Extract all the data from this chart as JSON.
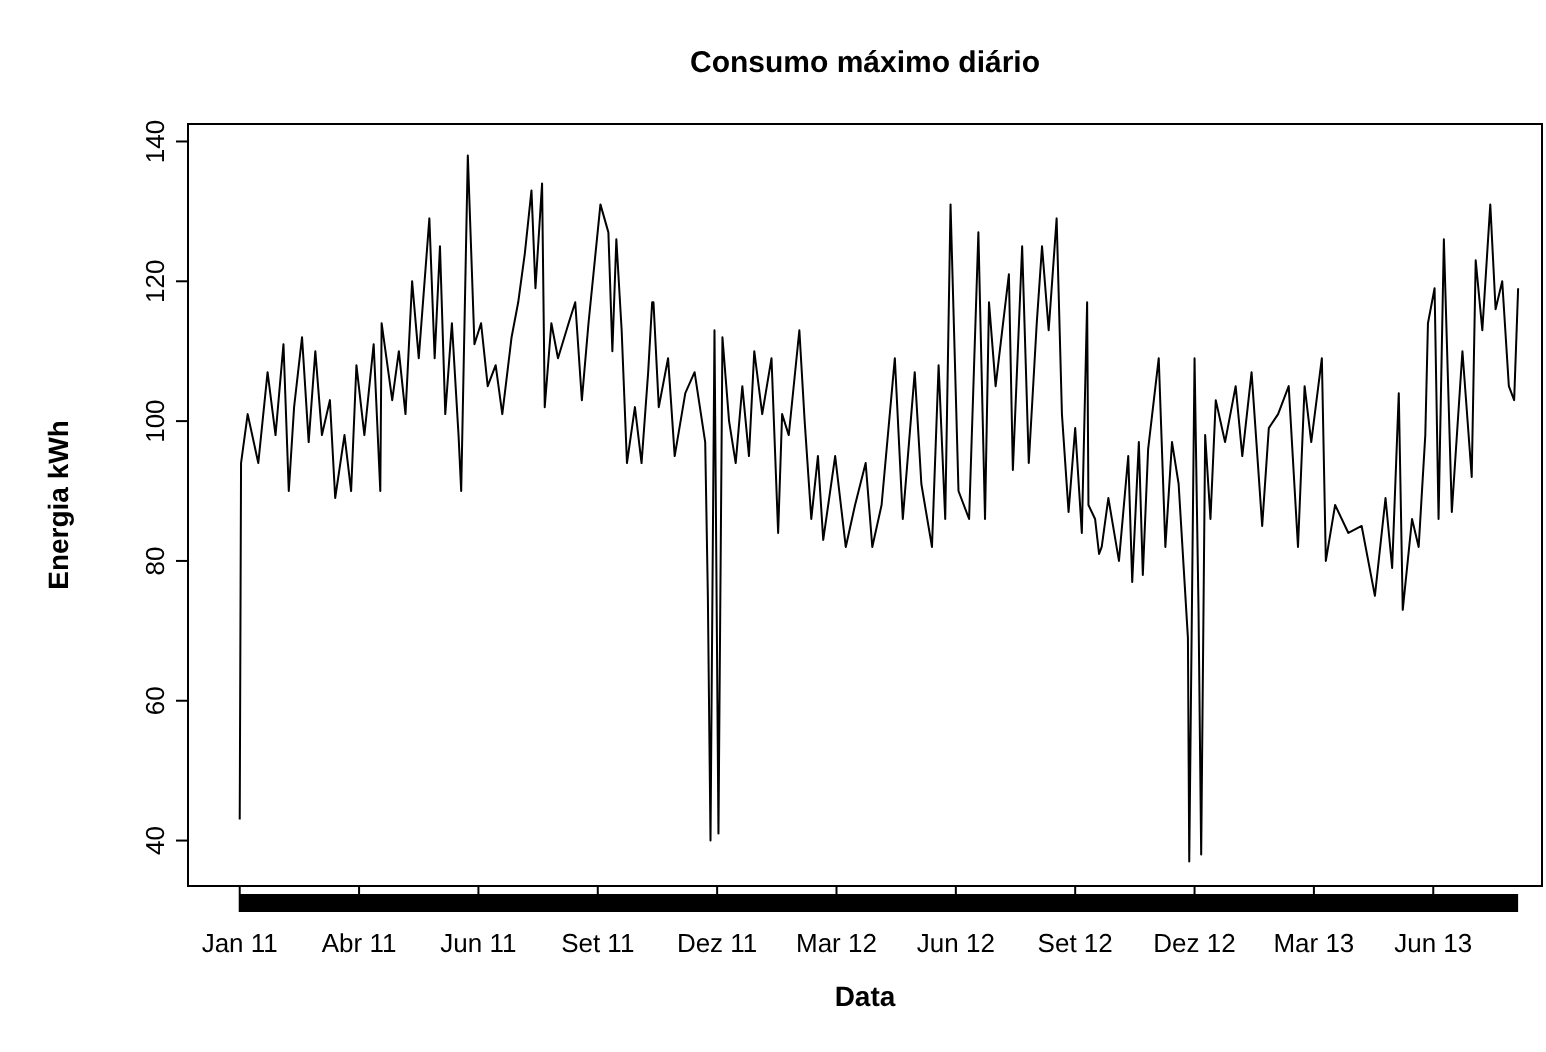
{
  "chart_data": {
    "type": "line",
    "title": "Consumo máximo diário",
    "xlabel": "Data",
    "ylabel": "Energia kWh",
    "xlim": [
      "2010-11-23",
      "2013-09-09"
    ],
    "ylim": [
      33.5,
      142.5
    ],
    "xticks": [
      {
        "value": "2011-01-01",
        "label": "Jan 11"
      },
      {
        "value": "2011-04-01",
        "label": "Abr 11"
      },
      {
        "value": "2011-06-30",
        "label": "Jun 11"
      },
      {
        "value": "2011-09-28",
        "label": "Set 11"
      },
      {
        "value": "2011-12-27",
        "label": "Dez 11"
      },
      {
        "value": "2012-03-26",
        "label": "Mar 12"
      },
      {
        "value": "2012-06-24",
        "label": "Jun 12"
      },
      {
        "value": "2012-09-22",
        "label": "Set 12"
      },
      {
        "value": "2012-12-21",
        "label": "Dez 12"
      },
      {
        "value": "2013-03-21",
        "label": "Mar 13"
      },
      {
        "value": "2013-06-19",
        "label": "Jun 13"
      }
    ],
    "yticks": [
      40,
      60,
      80,
      100,
      120,
      140
    ],
    "grid": false,
    "marker": "none",
    "line_style": "solid",
    "series": [
      {
        "color": "#000000",
        "x": [
          "2011-01-01",
          "2011-01-02",
          "2011-01-07",
          "2011-01-15",
          "2011-01-22",
          "2011-01-28",
          "2011-02-03",
          "2011-02-07",
          "2011-02-11",
          "2011-02-17",
          "2011-02-22",
          "2011-02-27",
          "2011-03-04",
          "2011-03-10",
          "2011-03-14",
          "2011-03-21",
          "2011-03-26",
          "2011-03-30",
          "2011-04-05",
          "2011-04-12",
          "2011-04-17",
          "2011-04-18",
          "2011-04-26",
          "2011-05-01",
          "2011-05-06",
          "2011-05-11",
          "2011-05-16",
          "2011-05-24",
          "2011-05-28",
          "2011-06-01",
          "2011-06-05",
          "2011-06-10",
          "2011-06-15",
          "2011-06-17",
          "2011-06-22",
          "2011-06-27",
          "2011-07-02",
          "2011-07-07",
          "2011-07-13",
          "2011-07-18",
          "2011-07-25",
          "2011-07-30",
          "2011-08-04",
          "2011-08-09",
          "2011-08-12",
          "2011-08-17",
          "2011-08-19",
          "2011-08-24",
          "2011-08-29",
          "2011-09-06",
          "2011-09-11",
          "2011-09-16",
          "2011-09-21",
          "2011-09-30",
          "2011-10-06",
          "2011-10-09",
          "2011-10-12",
          "2011-10-16",
          "2011-10-20",
          "2011-10-26",
          "2011-10-31",
          "2011-11-05",
          "2011-11-08",
          "2011-11-09",
          "2011-11-13",
          "2011-11-20",
          "2011-11-25",
          "2011-12-03",
          "2011-12-10",
          "2011-12-18",
          "2011-12-20",
          "2011-12-22",
          "2011-12-25",
          "2011-12-28",
          "2011-12-31",
          "2012-01-05",
          "2012-01-10",
          "2012-01-15",
          "2012-01-20",
          "2012-01-24",
          "2012-01-30",
          "2012-02-06",
          "2012-02-11",
          "2012-02-14",
          "2012-02-19",
          "2012-02-27",
          "2012-03-02",
          "2012-03-07",
          "2012-03-12",
          "2012-03-16",
          "2012-03-25",
          "2012-04-02",
          "2012-04-09",
          "2012-04-17",
          "2012-04-22",
          "2012-04-29",
          "2012-05-09",
          "2012-05-15",
          "2012-05-24",
          "2012-05-29",
          "2012-06-06",
          "2012-06-11",
          "2012-06-16",
          "2012-06-20",
          "2012-06-26",
          "2012-07-04",
          "2012-07-11",
          "2012-07-16",
          "2012-07-19",
          "2012-07-24",
          "2012-07-29",
          "2012-08-03",
          "2012-08-06",
          "2012-08-13",
          "2012-08-18",
          "2012-08-24",
          "2012-08-28",
          "2012-09-02",
          "2012-09-08",
          "2012-09-12",
          "2012-09-17",
          "2012-09-22",
          "2012-09-27",
          "2012-10-01",
          "2012-10-02",
          "2012-10-07",
          "2012-10-10",
          "2012-10-12",
          "2012-10-17",
          "2012-10-25",
          "2012-11-01",
          "2012-11-04",
          "2012-11-09",
          "2012-11-12",
          "2012-11-16",
          "2012-11-24",
          "2012-11-29",
          "2012-12-04",
          "2012-12-09",
          "2012-12-16",
          "2012-12-17",
          "2012-12-21",
          "2012-12-24",
          "2012-12-26",
          "2012-12-29",
          "2013-01-02",
          "2013-01-06",
          "2013-01-13",
          "2013-01-21",
          "2013-01-26",
          "2013-02-02",
          "2013-02-10",
          "2013-02-15",
          "2013-02-22",
          "2013-03-02",
          "2013-03-09",
          "2013-03-14",
          "2013-03-19",
          "2013-03-27",
          "2013-03-30",
          "2013-04-06",
          "2013-04-16",
          "2013-04-26",
          "2013-05-06",
          "2013-05-14",
          "2013-05-19",
          "2013-05-24",
          "2013-05-27",
          "2013-06-03",
          "2013-06-08",
          "2013-06-13",
          "2013-06-15",
          "2013-06-20",
          "2013-06-23",
          "2013-06-27",
          "2013-07-03",
          "2013-07-11",
          "2013-07-18",
          "2013-07-21",
          "2013-07-26",
          "2013-08-01",
          "2013-08-05",
          "2013-08-10",
          "2013-08-15",
          "2013-08-19",
          "2013-08-22"
        ],
        "values": [
          43,
          94,
          101,
          94,
          107,
          98,
          111,
          90,
          102,
          112,
          97,
          110,
          98,
          103,
          89,
          98,
          90,
          108,
          98,
          111,
          90,
          114,
          103,
          110,
          101,
          120,
          109,
          129,
          109,
          125,
          101,
          114,
          98,
          90,
          138,
          111,
          114,
          105,
          108,
          101,
          112,
          117,
          124,
          133,
          119,
          134,
          102,
          114,
          109,
          114,
          117,
          103,
          114,
          131,
          127,
          110,
          126,
          113,
          94,
          102,
          94,
          107,
          117,
          117,
          102,
          109,
          95,
          104,
          107,
          97,
          75,
          40,
          113,
          41,
          112,
          100,
          94,
          105,
          95,
          110,
          101,
          109,
          84,
          101,
          98,
          113,
          100,
          86,
          95,
          83,
          95,
          82,
          88,
          94,
          82,
          88,
          109,
          86,
          107,
          91,
          82,
          108,
          86,
          131,
          90,
          86,
          127,
          86,
          117,
          105,
          113,
          121,
          93,
          125,
          94,
          114,
          125,
          113,
          129,
          101,
          87,
          99,
          84,
          117,
          88,
          86,
          81,
          82,
          89,
          80,
          95,
          77,
          97,
          78,
          96,
          109,
          82,
          97,
          91,
          69,
          37,
          109,
          73,
          38,
          98,
          86,
          103,
          97,
          105,
          95,
          107,
          85,
          99,
          101,
          105,
          82,
          105,
          97,
          109,
          80,
          88,
          84,
          85,
          75,
          89,
          79,
          104,
          73,
          86,
          82,
          98,
          114,
          119,
          86,
          126,
          87,
          110,
          92,
          123,
          113,
          131,
          116,
          120,
          105,
          103,
          119
        ]
      }
    ]
  }
}
